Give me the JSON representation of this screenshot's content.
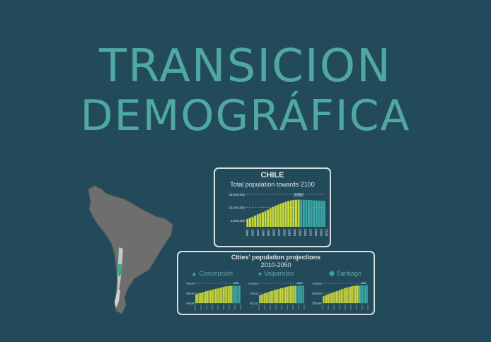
{
  "title": {
    "line1": "TRANSICION",
    "line2": "DEMOGRÁFICA"
  },
  "colors": {
    "background": "#234a5a",
    "title": "#4fa9a0",
    "historic": "#c9d83a",
    "projection": "#3aa7a4",
    "map": "#6e6e6e"
  },
  "chart_data": [
    {
      "type": "bar",
      "title": "CHILE",
      "subtitle": "Total population towards 2100",
      "ytick_labels": [
        "25,000,000",
        "15,000,000",
        "5,000,000"
      ],
      "yticks": [
        25000000,
        15000000,
        5000000
      ],
      "ylim": [
        0,
        25000000
      ],
      "xtick_labels": [
        "1950",
        "1960",
        "1970",
        "1980",
        "1990",
        "2000",
        "2010",
        "2020",
        "2030",
        "2040",
        "2050",
        "2060",
        "2070",
        "2080",
        "2090",
        "2100"
      ],
      "annotation": "2050",
      "x": [
        1950,
        1955,
        1960,
        1965,
        1970,
        1975,
        1980,
        1985,
        1990,
        1995,
        2000,
        2005,
        2010,
        2015,
        2020,
        2025,
        2030,
        2035,
        2040,
        2045,
        2050,
        2055,
        2060,
        2065,
        2070,
        2075,
        2080,
        2085,
        2090,
        2095,
        2100
      ],
      "values": [
        6100000,
        7000000,
        7700000,
        8600000,
        9600000,
        10400000,
        11200000,
        12100000,
        13200000,
        14400000,
        15400000,
        16200000,
        17100000,
        17900000,
        18600000,
        19300000,
        19900000,
        20300000,
        20600000,
        20800000,
        20900000,
        20900000,
        20800000,
        20700000,
        20600000,
        20500000,
        20400000,
        20300000,
        20200000,
        20100000,
        20000000
      ],
      "projection_from": 2050
    },
    {
      "type": "bar",
      "title": "Cities' population projections",
      "subtitle": "2010-2050",
      "series": [
        {
          "name": "Concepción",
          "icon": "triangle-icon",
          "ytick_labels": [
            "960,000",
            "880,000",
            "800,000"
          ],
          "annotation": "2037",
          "values": [
            0.45,
            0.48,
            0.5,
            0.52,
            0.55,
            0.57,
            0.6,
            0.62,
            0.64,
            0.66,
            0.68,
            0.7,
            0.72,
            0.74,
            0.76,
            0.78,
            0.8,
            0.82,
            0.84,
            0.86,
            0.86,
            0.87,
            0.87,
            0.88,
            0.88,
            0.88,
            0.89,
            0.89
          ]
        },
        {
          "name": "Valparaíso",
          "icon": "circle-icon",
          "ytick_labels": [
            "1,000,000",
            "910,511",
            "821,511"
          ],
          "annotation": "2037",
          "values": [
            0.4,
            0.43,
            0.46,
            0.49,
            0.52,
            0.55,
            0.58,
            0.61,
            0.63,
            0.66,
            0.68,
            0.7,
            0.72,
            0.75,
            0.77,
            0.79,
            0.81,
            0.83,
            0.85,
            0.86,
            0.87,
            0.87,
            0.88,
            0.88,
            0.88,
            0.89,
            0.89,
            0.89
          ]
        },
        {
          "name": "Santiago",
          "icon": "hexagon-icon",
          "ytick_labels": [
            "7,750,000",
            "6,500,000",
            "5,500,000"
          ],
          "annotation": "2037",
          "values": [
            0.35,
            0.38,
            0.42,
            0.45,
            0.48,
            0.51,
            0.54,
            0.57,
            0.6,
            0.63,
            0.66,
            0.69,
            0.72,
            0.75,
            0.78,
            0.8,
            0.82,
            0.84,
            0.86,
            0.88,
            0.88,
            0.89,
            0.89,
            0.9,
            0.9,
            0.9,
            0.91,
            0.91
          ]
        }
      ]
    }
  ]
}
